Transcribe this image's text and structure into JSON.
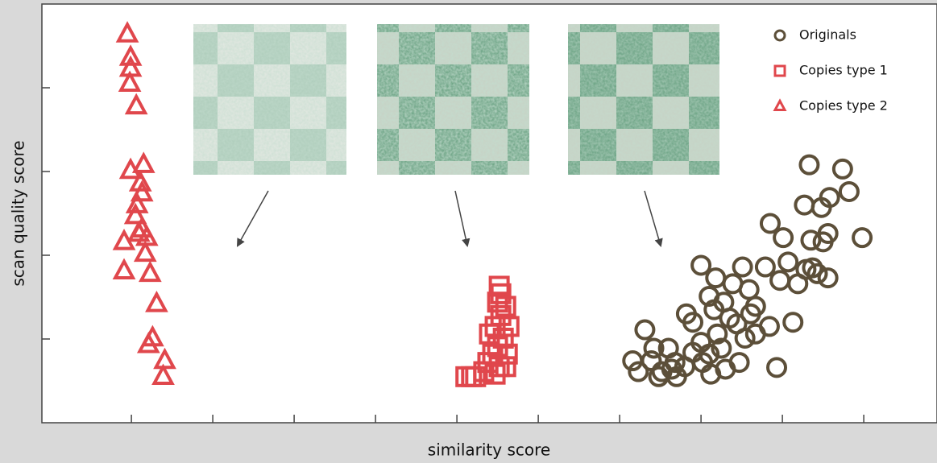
{
  "chart_data": {
    "type": "scatter",
    "x_label": "similarity score",
    "y_label": "scan quality score",
    "xlim": [
      -0.1,
      10.9
    ],
    "ylim": [
      0,
      5
    ],
    "xticks": [
      1,
      2,
      3,
      4,
      5,
      6,
      7,
      8,
      9,
      10
    ],
    "yticks": [
      1,
      2,
      3,
      4
    ],
    "legend": "top-right",
    "series": [
      {
        "name": "Originals",
        "color": "#5c4f39",
        "marker": "circle",
        "x": [
          9.33,
          9.74,
          9.27,
          9.48,
          9.82,
          9.58,
          8.85,
          9.01,
          9.35,
          9.56,
          9.5,
          9.98,
          8.0,
          8.51,
          8.79,
          9.07,
          9.29,
          9.43,
          9.56,
          8.18,
          8.39,
          8.59,
          8.97,
          9.19,
          9.37,
          8.1,
          8.28,
          8.67,
          8.61,
          8.16,
          7.82,
          7.9,
          8.35,
          8.44,
          8.84,
          9.13,
          7.31,
          8.2,
          8.0,
          8.54,
          8.67,
          7.6,
          7.42,
          7.9,
          8.1,
          8.25,
          8.47,
          7.16,
          7.39,
          7.68,
          7.8,
          8.02,
          7.23,
          7.48,
          7.7,
          8.12,
          8.3,
          8.93,
          7.52,
          7.64
        ],
        "y": [
          3.08,
          3.03,
          2.6,
          2.57,
          2.76,
          2.69,
          2.38,
          2.21,
          2.18,
          2.26,
          2.16,
          2.21,
          1.88,
          1.86,
          1.86,
          1.92,
          1.83,
          1.78,
          1.73,
          1.73,
          1.66,
          1.59,
          1.7,
          1.66,
          1.85,
          1.51,
          1.44,
          1.39,
          1.3,
          1.35,
          1.3,
          1.2,
          1.25,
          1.18,
          1.15,
          1.2,
          1.11,
          1.06,
          0.96,
          1.01,
          1.06,
          0.89,
          0.89,
          0.84,
          0.82,
          0.89,
          0.72,
          0.74,
          0.74,
          0.72,
          0.67,
          0.72,
          0.61,
          0.55,
          0.55,
          0.58,
          0.64,
          0.66,
          0.61,
          0.64
        ]
      },
      {
        "name": "Copies type 1",
        "color": "#e0474c",
        "marker": "square",
        "x": [
          5.52,
          5.54,
          5.5,
          5.6,
          5.54,
          5.47,
          5.64,
          5.4,
          5.57,
          5.5,
          5.44,
          5.62,
          5.38,
          5.52,
          5.6,
          5.33,
          5.47,
          5.23,
          5.18,
          5.11
        ],
        "y": [
          1.63,
          1.54,
          1.44,
          1.39,
          1.28,
          1.15,
          1.15,
          1.06,
          1.01,
          0.91,
          0.82,
          0.82,
          0.72,
          0.67,
          0.67,
          0.61,
          0.58,
          0.55,
          0.55,
          0.55
        ]
      },
      {
        "name": "Copies type 2",
        "color": "#e0474c",
        "marker": "triangle",
        "x": [
          0.95,
          0.99,
          0.99,
          0.98,
          1.06,
          1.15,
          0.99,
          1.11,
          1.13,
          1.07,
          1.05,
          1.13,
          1.09,
          1.19,
          0.91,
          1.17,
          1.23,
          0.91,
          1.31,
          1.26,
          1.21,
          1.41,
          1.39
        ],
        "y": [
          4.64,
          4.36,
          4.23,
          4.05,
          3.78,
          3.08,
          3.01,
          2.86,
          2.74,
          2.6,
          2.47,
          2.31,
          2.26,
          2.21,
          2.16,
          2.02,
          1.78,
          1.81,
          1.42,
          1.01,
          0.93,
          0.74,
          0.55
        ]
      }
    ]
  }
}
